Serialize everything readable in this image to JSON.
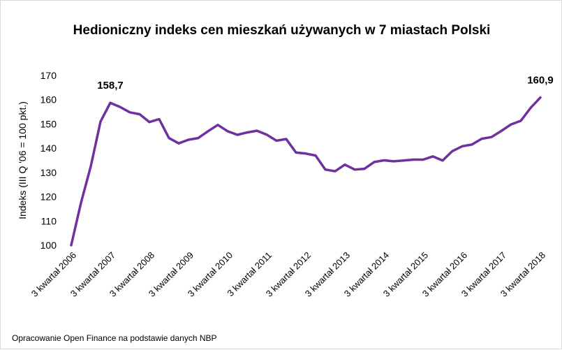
{
  "title": "Hedioniczny indeks cen mieszkań używanych w 7 miastach Polski",
  "source": "Opracowanie Open Finance na podstawie danych NBP",
  "chart_data": {
    "type": "line",
    "title": "Hedioniczny indeks cen mieszkań używanych w 7 miastach Polski",
    "ylabel": "Indeks (III Q '06 = 100 pkt.)",
    "xlabel": "",
    "ylim": [
      100,
      170
    ],
    "yticks": [
      100,
      110,
      120,
      130,
      140,
      150,
      160,
      170
    ],
    "grid": false,
    "x_tick_labels": [
      "3 kwartał 2006",
      "3 kwartał 2007",
      "3 kwartał 2008",
      "3 kwartał 2009",
      "3 kwartał 2010",
      "3 kwartał 2011",
      "3 kwartał 2012",
      "3 kwartał 2013",
      "3 kwartał 2014",
      "3 kwartał 2015",
      "3 kwartał 2016",
      "3 kwartał 2017",
      "3 kwartał 2018"
    ],
    "line_color": "#7030a0",
    "series": [
      {
        "values": [
          100,
          117.5,
          132.5,
          151,
          158.7,
          157,
          154.8,
          154,
          150.8,
          152,
          144.2,
          142,
          143.5,
          144.2,
          147,
          149.6,
          147,
          145.5,
          146.5,
          147.2,
          145.6,
          143.1,
          143.8,
          138.2,
          137.8,
          137,
          131.2,
          130.5,
          133.2,
          131.2,
          131.5,
          134.3,
          135,
          134.6,
          134.9,
          135.3,
          135.3,
          136.6,
          134.9,
          138.8,
          140.8,
          141.5,
          143.9,
          144.6,
          147.1,
          149.8,
          151.3,
          156.6,
          160.9
        ]
      }
    ],
    "annotations": [
      {
        "index": 4,
        "text": "158,7"
      },
      {
        "index": 48,
        "text": "160,9"
      }
    ]
  }
}
